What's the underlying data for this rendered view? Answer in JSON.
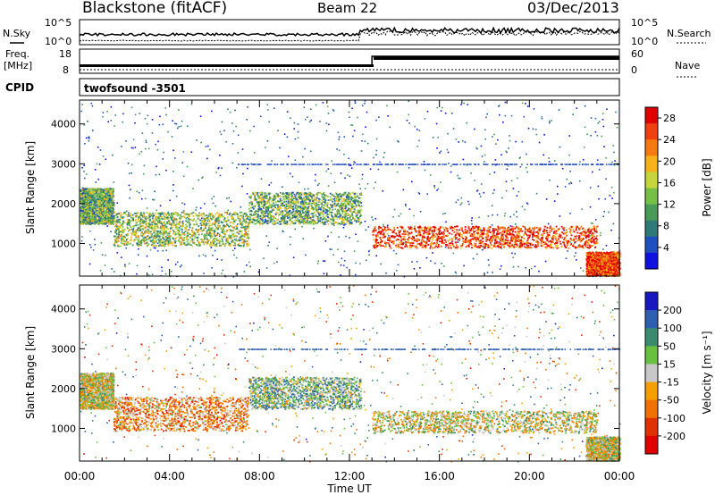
{
  "header": {
    "station": "Blackstone (fitACF)",
    "beam": "Beam 22",
    "date": "03/Dec/2013"
  },
  "status_panels": {
    "nsky_label": "N.Sky",
    "nsearch_label": "N.Search",
    "counts_ticks": [
      "10^5",
      "10^0"
    ],
    "freq_label_line1": "Freq.",
    "freq_label_line2": "[MHz]",
    "freq_ticks": [
      "18",
      "8"
    ],
    "nave_ticks": [
      "60",
      "0"
    ],
    "nave_label": "Nave",
    "cpid_label": "CPID",
    "cpid_value": "twofsound  -3501"
  },
  "chart_data": [
    {
      "type": "heatmap",
      "name": "power",
      "xlabel": "Time UT",
      "ylabel": "Slant Range [km]",
      "xlim": [
        0,
        24
      ],
      "ylim": [
        180,
        4600
      ],
      "x_ticks": [
        "00:00",
        "04:00",
        "08:00",
        "12:00",
        "16:00",
        "20:00",
        "00:00"
      ],
      "y_ticks": [
        1000,
        2000,
        3000,
        4000
      ],
      "colorbar": {
        "label": "Power [dB]",
        "ticks": [
          "4",
          "8",
          "12",
          "16",
          "20",
          "24",
          "28"
        ],
        "range": [
          0,
          30
        ],
        "colors": [
          "#1010e0",
          "#204fc0",
          "#2f7a78",
          "#4a9a58",
          "#77c047",
          "#c6d63a",
          "#f5b21a",
          "#f57b10",
          "#f04010",
          "#e00000"
        ]
      },
      "bands": [
        {
          "t": [
            0,
            1.5
          ],
          "range": [
            1500,
            2400
          ],
          "level": 12
        },
        {
          "t": [
            1.5,
            7.5
          ],
          "range": [
            950,
            1800
          ],
          "level": 14
        },
        {
          "t": [
            7.5,
            12.5
          ],
          "range": [
            1500,
            2300
          ],
          "level": 12
        },
        {
          "t": [
            13,
            23
          ],
          "range": [
            900,
            1450
          ],
          "level": 26
        },
        {
          "t": [
            22.5,
            24
          ],
          "range": [
            200,
            800
          ],
          "level": 26
        }
      ]
    },
    {
      "type": "heatmap",
      "name": "velocity",
      "xlabel": "Time UT",
      "ylabel": "Slant Range [km]",
      "xlim": [
        0,
        24
      ],
      "ylim": [
        180,
        4600
      ],
      "x_ticks": [
        "00:00",
        "04:00",
        "08:00",
        "12:00",
        "16:00",
        "20:00",
        "00:00"
      ],
      "y_ticks": [
        1000,
        2000,
        3000,
        4000
      ],
      "colorbar": {
        "label": "Velocity [m s⁻¹]",
        "ticks": [
          "200",
          "100",
          "50",
          "15",
          "-15",
          "-50",
          "-100",
          "-200"
        ],
        "range": [
          -250,
          250
        ],
        "colors": [
          "#1818c0",
          "#2f5fb0",
          "#3a8c70",
          "#6ac040",
          "#c8c8c8",
          "#f5a000",
          "#f07000",
          "#e03000",
          "#e00000"
        ]
      },
      "bands": [
        {
          "t": [
            0,
            1.5
          ],
          "range": [
            1500,
            2400
          ],
          "level": 0
        },
        {
          "t": [
            1.5,
            7.5
          ],
          "range": [
            950,
            1800
          ],
          "level": -80
        },
        {
          "t": [
            7.5,
            12.5
          ],
          "range": [
            1500,
            2300
          ],
          "level": 60
        },
        {
          "t": [
            13,
            23
          ],
          "range": [
            900,
            1450
          ],
          "level": 0
        },
        {
          "t": [
            22.5,
            24
          ],
          "range": [
            200,
            800
          ],
          "level": 0
        }
      ]
    }
  ]
}
